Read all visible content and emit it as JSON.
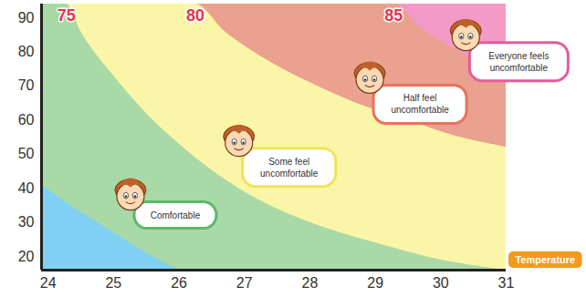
{
  "chart_data": {
    "type": "area",
    "x_label": "Temperature",
    "xlim": [
      23.9,
      31
    ],
    "xticks": [
      24,
      25,
      26,
      27,
      28,
      29,
      30,
      31
    ],
    "ylim": [
      16,
      94
    ],
    "yticks": [
      20,
      30,
      40,
      50,
      60,
      70,
      80,
      90
    ],
    "color": "#f49ac6",
    "series": [
      {
        "name": "85",
        "color": "#eaa18f",
        "x": [
          29.28,
          29.7,
          30.2,
          30.6,
          31
        ],
        "values": [
          94,
          87,
          81,
          77,
          74
        ]
      },
      {
        "name": "80",
        "color": "#fbf6a7",
        "x": [
          26.25,
          26.7,
          27.4,
          28,
          28.7,
          29.5,
          30.1,
          31
        ],
        "values": [
          94,
          86,
          77,
          71,
          65,
          60,
          56,
          52
        ]
      },
      {
        "name": "75",
        "color": "#a9d9a6",
        "x": [
          24.28,
          24.5,
          25,
          25.5,
          26,
          27,
          28,
          29,
          30,
          31
        ],
        "values": [
          94,
          86,
          73,
          62,
          53,
          39,
          30,
          24,
          19,
          16
        ]
      },
      {
        "color": "#7fd0f2",
        "x": [
          23.9,
          24.5,
          25,
          25.5,
          26
        ],
        "values": [
          41,
          33,
          27,
          21,
          16
        ]
      }
    ],
    "annotations": [
      {
        "text": "Comfortable",
        "x": 25.95,
        "y": 32,
        "color": "#5cb868"
      },
      {
        "text": "Some feel uncomfortable",
        "x": 27.69,
        "y": 46,
        "color": "#f1e35a"
      },
      {
        "text": "Half feel uncomfortable",
        "x": 29.69,
        "y": 64.5,
        "color": "#e8735a"
      },
      {
        "text": "Everyone feels uncomfortable",
        "x": 31.2,
        "y": 77,
        "color": "#e65a9c"
      }
    ]
  }
}
